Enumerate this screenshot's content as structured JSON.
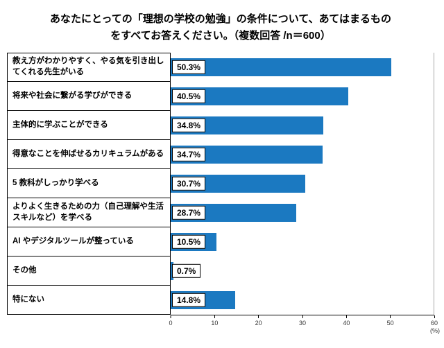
{
  "title": {
    "line1": "あなたにとっての「理想の学校の勉強」の条件について、あてはまるもの",
    "line2": "をすべてお答えください。（複数回答 /n＝600）"
  },
  "chart_data": {
    "type": "bar",
    "orientation": "horizontal",
    "title": "あなたにとっての「理想の学校の勉強」の条件について、あてはまるものをすべてお答えください。（複数回答 /n＝600）",
    "categories": [
      "教え方がわかりやすく、やる気を引き出してくれる先生がいる",
      "将来や社会に繋がる学びができる",
      "主体的に学ぶことができる",
      "得意なことを伸ばせるカリキュラムがある",
      "5 教科がしっかり学べる",
      "よりよく生きるための力（自己理解や生活スキルなど）を学べる",
      "AI やデジタルツールが整っている",
      "その他",
      "特にない"
    ],
    "values": [
      50.3,
      40.5,
      34.8,
      34.7,
      30.7,
      28.7,
      10.5,
      0.7,
      14.8
    ],
    "value_labels": [
      "50.3%",
      "40.5%",
      "34.8%",
      "34.7%",
      "30.7%",
      "28.7%",
      "10.5%",
      "0.7%",
      "14.8%"
    ],
    "xlim": [
      0,
      60
    ],
    "x_ticks": [
      0,
      10,
      20,
      30,
      40,
      50,
      60
    ],
    "x_unit": "(%)",
    "bar_color": "#1B79C1",
    "grid": false,
    "legend": "none"
  }
}
